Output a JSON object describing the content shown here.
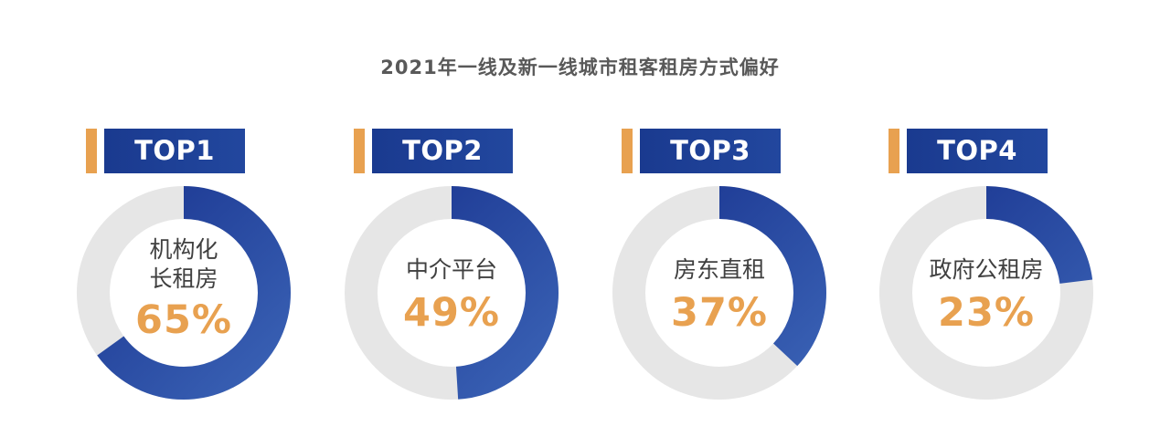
{
  "title": "2021年一线及新一线城市租客租房方式偏好",
  "colors": {
    "ring_track": "#e6e6e6",
    "ring_fill_start": "#3a62b5",
    "ring_fill_end": "#1a3590",
    "badge": "#1a3a8f",
    "accent": "#e8a150"
  },
  "items": [
    {
      "rank": "TOP1",
      "label_lines": [
        "机构化",
        "长租房"
      ],
      "value_text": "65%"
    },
    {
      "rank": "TOP2",
      "label_lines": [
        "中介平台"
      ],
      "value_text": "49%"
    },
    {
      "rank": "TOP3",
      "label_lines": [
        "房东直租"
      ],
      "value_text": "37%"
    },
    {
      "rank": "TOP4",
      "label_lines": [
        "政府公租房"
      ],
      "value_text": "23%"
    }
  ],
  "chart_data": {
    "type": "pie",
    "title": "2021年一线及新一线城市租客租房方式偏好",
    "categories": [
      "机构化长租房",
      "中介平台",
      "房东直租",
      "政府公租房"
    ],
    "values": [
      65,
      49,
      37,
      23
    ],
    "unit": "%"
  }
}
